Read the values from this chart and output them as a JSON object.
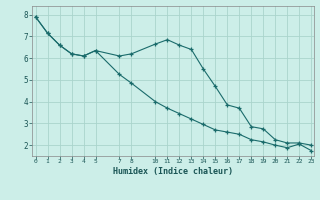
{
  "xlabel": "Humidex (Indice chaleur)",
  "ylabel": "",
  "background_color": "#cceee8",
  "grid_color": "#aad4cc",
  "line_color": "#1a6b6b",
  "line1_x": [
    0,
    1,
    2,
    3,
    4,
    5,
    7,
    8,
    10,
    11,
    12,
    13,
    14,
    15,
    16,
    17,
    18,
    19,
    20,
    21,
    22,
    23
  ],
  "line1_y": [
    7.9,
    7.15,
    6.6,
    6.2,
    6.1,
    6.35,
    6.1,
    6.2,
    6.65,
    6.85,
    6.6,
    6.4,
    5.5,
    4.7,
    3.85,
    3.7,
    2.85,
    2.75,
    2.25,
    2.1,
    2.1,
    2.0
  ],
  "line2_x": [
    0,
    1,
    2,
    3,
    4,
    5,
    7,
    8,
    10,
    11,
    12,
    13,
    14,
    15,
    16,
    17,
    18,
    19,
    20,
    21,
    22,
    23
  ],
  "line2_y": [
    7.9,
    7.15,
    6.6,
    6.2,
    6.1,
    6.35,
    5.25,
    4.85,
    4.0,
    3.7,
    3.45,
    3.2,
    2.95,
    2.7,
    2.6,
    2.5,
    2.25,
    2.15,
    2.0,
    1.88,
    2.05,
    1.75
  ],
  "xlim": [
    -0.3,
    23.2
  ],
  "ylim": [
    1.5,
    8.4
  ],
  "yticks": [
    2,
    3,
    4,
    5,
    6,
    7,
    8
  ],
  "xticks": [
    0,
    1,
    2,
    3,
    4,
    5,
    7,
    8,
    10,
    11,
    12,
    13,
    14,
    15,
    16,
    17,
    18,
    19,
    20,
    21,
    22,
    23
  ]
}
